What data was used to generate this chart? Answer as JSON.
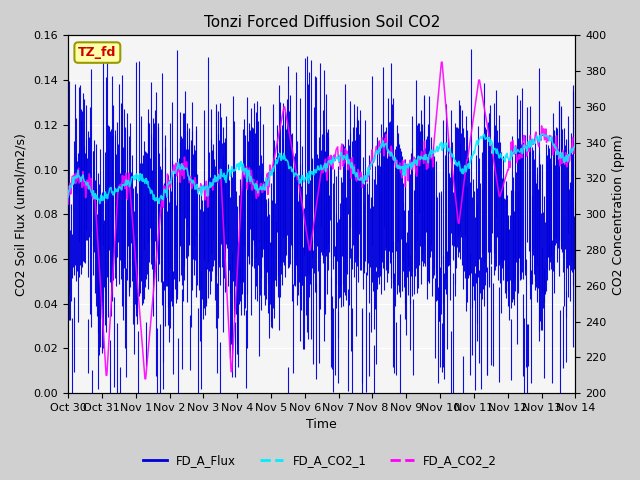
{
  "title": "Tonzi Forced Diffusion Soil CO2",
  "xlabel": "Time",
  "ylabel_left": "CO2 Soil Flux (umol/m2/s)",
  "ylabel_right": "CO2 Concentration (ppm)",
  "ylim_left": [
    0.0,
    0.16
  ],
  "ylim_right": [
    200,
    400
  ],
  "fig_facecolor": "#d0d0d0",
  "plot_bg_color": "#e8e8e8",
  "plot_inner_bg": "#f5f5f5",
  "tag_label": "TZ_fd",
  "tag_bg": "#ffffaa",
  "tag_text_color": "#cc0000",
  "tag_edge_color": "#999900",
  "flux_color": "#0000dd",
  "co2_1_color": "#00eeff",
  "co2_2_color": "#ff00ff",
  "legend_labels": [
    "FD_A_Flux",
    "FD_A_CO2_1",
    "FD_A_CO2_2"
  ],
  "xtick_labels": [
    "Oct 30",
    "Oct 31",
    "Nov 1",
    "Nov 2",
    "Nov 3",
    "Nov 4",
    "Nov 5",
    "Nov 6",
    "Nov 7",
    "Nov 8",
    "Nov 9",
    "Nov 10",
    "Nov 11",
    "Nov 12",
    "Nov 13",
    "Nov 14"
  ],
  "yticks_left": [
    0.0,
    0.02,
    0.04,
    0.06,
    0.08,
    0.1,
    0.12,
    0.14,
    0.16
  ],
  "yticks_right": [
    200,
    220,
    240,
    260,
    280,
    300,
    320,
    340,
    360,
    380,
    400
  ],
  "n_days": 15,
  "samples_per_day": 48
}
